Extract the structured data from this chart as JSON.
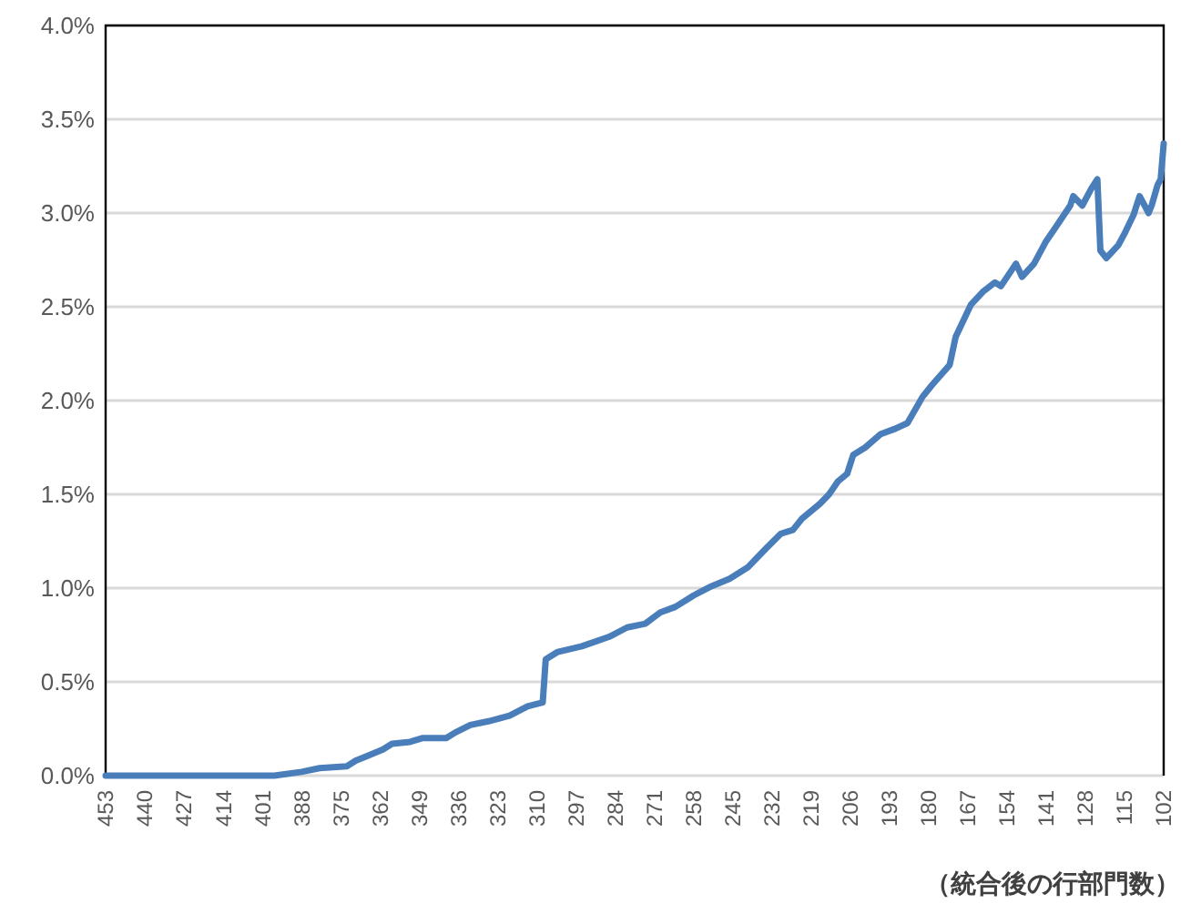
{
  "chart_data": {
    "type": "line",
    "xlabel": "（統合後の行部門数）",
    "x": [
      453,
      397,
      388,
      382,
      373,
      370,
      367,
      361,
      358,
      352,
      348,
      340,
      337,
      332,
      326,
      319,
      313,
      308,
      307,
      303,
      295,
      286,
      280,
      274,
      269,
      264,
      258,
      252,
      246,
      240,
      237,
      234,
      229,
      225,
      222,
      216,
      213,
      210,
      207,
      205,
      201,
      196,
      191,
      187,
      182,
      179,
      173,
      171,
      166,
      162,
      158,
      156,
      151,
      149,
      145,
      141,
      138,
      133,
      132,
      129,
      126,
      124,
      123,
      121,
      117,
      115,
      112,
      111,
      110,
      107,
      106,
      104,
      103,
      102
    ],
    "series": [
      {
        "color": "#4a7ebb",
        "values": [
          0,
          0,
          0.02,
          0.04,
          0.05,
          0.08,
          0.1,
          0.14,
          0.17,
          0.18,
          0.2,
          0.2,
          0.23,
          0.27,
          0.29,
          0.32,
          0.37,
          0.39,
          0.62,
          0.66,
          0.69,
          0.74,
          0.79,
          0.81,
          0.87,
          0.9,
          0.96,
          1.01,
          1.05,
          1.11,
          1.16,
          1.21,
          1.29,
          1.31,
          1.37,
          1.45,
          1.5,
          1.57,
          1.61,
          1.71,
          1.75,
          1.82,
          1.85,
          1.88,
          2.02,
          2.08,
          2.19,
          2.34,
          2.51,
          2.58,
          2.63,
          2.61,
          2.73,
          2.66,
          2.73,
          2.85,
          2.92,
          3.04,
          3.09,
          3.04,
          3.13,
          3.18,
          2.8,
          2.76,
          2.83,
          2.89,
          2.99,
          3.04,
          3.09,
          3.0,
          3.04,
          3.15,
          3.18,
          3.37
        ]
      }
    ],
    "xlim": [
      453,
      102
    ],
    "xticks": [
      453,
      440,
      427,
      414,
      401,
      388,
      375,
      362,
      349,
      336,
      323,
      310,
      297,
      284,
      271,
      258,
      245,
      232,
      219,
      206,
      193,
      180,
      167,
      154,
      141,
      128,
      115,
      102
    ],
    "ylim": [
      0,
      4
    ],
    "yticks": [
      {
        "value": 0,
        "label": "0.0%"
      },
      {
        "value": 0.5,
        "label": "0.5%"
      },
      {
        "value": 1,
        "label": "1.0%"
      },
      {
        "value": 1.5,
        "label": "1.5%"
      },
      {
        "value": 2,
        "label": "2.0%"
      },
      {
        "value": 2.5,
        "label": "2.5%"
      },
      {
        "value": 3,
        "label": "3.0%"
      },
      {
        "value": 3.5,
        "label": "3.5%"
      },
      {
        "value": 4,
        "label": "4.0%"
      }
    ],
    "grid": "y",
    "marker": "none",
    "line_style": "solid"
  }
}
